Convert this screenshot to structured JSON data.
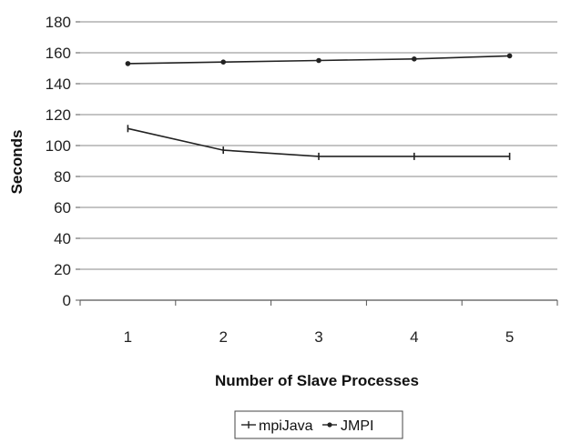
{
  "chart_data": {
    "type": "line",
    "title": "",
    "xlabel": "Number of Slave Processes",
    "ylabel": "Seconds",
    "categories": [
      "1",
      "2",
      "3",
      "4",
      "5"
    ],
    "yticks": [
      "0",
      "20",
      "40",
      "60",
      "80",
      "100",
      "120",
      "140",
      "160",
      "180"
    ],
    "ylim": [
      0,
      180
    ],
    "grid": true,
    "legend_position": "bottom",
    "series": [
      {
        "name": "mpiJava",
        "values": [
          111,
          97,
          93,
          93,
          93
        ],
        "marker": "dash"
      },
      {
        "name": "JMPI",
        "values": [
          153,
          154,
          155,
          156,
          158
        ],
        "marker": "dot"
      }
    ]
  }
}
